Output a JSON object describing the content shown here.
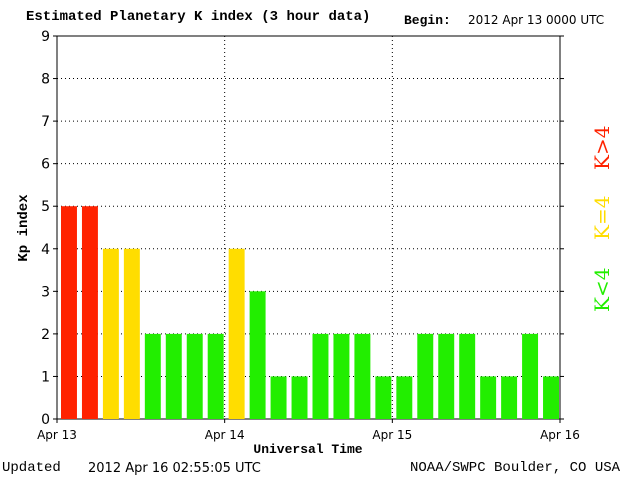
{
  "header": {
    "title": "Estimated Planetary K index (3 hour data)",
    "begin_label": "Begin:",
    "begin_value": "2012 Apr 13 0000 UTC"
  },
  "footer": {
    "updated_label": "Updated",
    "updated_value": "2012 Apr 16 02:55:05 UTC",
    "credit": "NOAA/SWPC Boulder, CO USA"
  },
  "legend": {
    "high": {
      "label": "K>4",
      "color": "#ff2200"
    },
    "mid": {
      "label": "K=4",
      "color": "#ffdd00"
    },
    "low": {
      "label": "K<4",
      "color": "#22ee00"
    }
  },
  "chart_data": {
    "type": "bar",
    "title": "Estimated Planetary K index (3 hour data)",
    "xlabel": "Universal Time",
    "ylabel": "Kp index",
    "ylim": [
      0,
      9
    ],
    "yticks": [
      0,
      1,
      2,
      3,
      4,
      5,
      6,
      7,
      8,
      9
    ],
    "xticks": [
      "Apr 13",
      "Apr 14",
      "Apr 15",
      "Apr 16"
    ],
    "grid": true,
    "values": [
      5,
      5,
      4,
      4,
      2,
      2,
      2,
      2,
      4,
      3,
      1,
      1,
      2,
      2,
      2,
      1,
      1,
      2,
      2,
      2,
      1,
      1,
      2,
      1
    ]
  }
}
